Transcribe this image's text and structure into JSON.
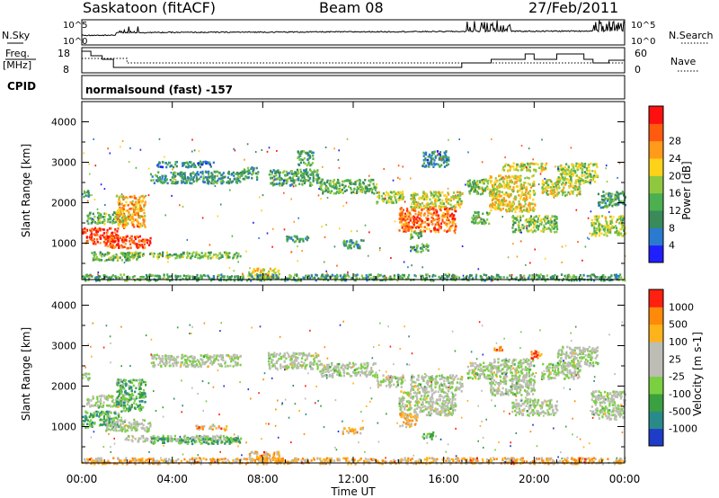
{
  "header": {
    "station": "Saskatoon (fitACF)",
    "beam": "Beam 08",
    "date": "27/Feb/2011"
  },
  "top_panels": {
    "nsky_label": "N.Sky",
    "nsearch_label": "N.Search",
    "noise_tick_top": "10^5",
    "noise_tick_bottom": "10^0",
    "freq_label": "Freq.",
    "freq_unit": "[MHz]",
    "freq_ticks": [
      "18",
      "8"
    ],
    "nave_label": "Nave",
    "nave_ticks": [
      "60",
      "0"
    ],
    "cpid_label": "CPID",
    "cpid_value": "normalsound (fast) -157"
  },
  "chart_data": [
    {
      "type": "heatmap",
      "name": "power-panel",
      "xlabel": "Time UT",
      "ylabel": "Slant Range [km]",
      "xlim": [
        0,
        24
      ],
      "ylim": [
        100,
        4500
      ],
      "x_ticks": [
        "00:00",
        "04:00",
        "08:00",
        "12:00",
        "16:00",
        "20:00",
        "00:00"
      ],
      "y_ticks": [
        1000,
        2000,
        3000,
        4000
      ],
      "colorbar": {
        "label": "Power [dB]",
        "ticks": [
          4,
          8,
          12,
          16,
          20,
          24,
          28
        ],
        "colors": [
          "#1f1fff",
          "#2a7ad0",
          "#3a8a5a",
          "#4caf50",
          "#8fc840",
          "#ffd21a",
          "#ff9a1a",
          "#ff5a10",
          "#ff1010"
        ]
      },
      "regions": [
        {
          "t": [
            0.0,
            0.3
          ],
          "r": [
            2150,
            2350
          ],
          "level": 0.35
        },
        {
          "t": [
            0.0,
            1.6
          ],
          "r": [
            1000,
            1400
          ],
          "level": 0.9
        },
        {
          "t": [
            0.2,
            1.8
          ],
          "r": [
            1500,
            1800
          ],
          "level": 0.4
        },
        {
          "t": [
            1.5,
            2.8
          ],
          "r": [
            1400,
            2200
          ],
          "level": 0.7
        },
        {
          "t": [
            1.0,
            3.0
          ],
          "r": [
            900,
            1200
          ],
          "level": 0.85
        },
        {
          "t": [
            1.8,
            7.0
          ],
          "r": [
            650,
            800
          ],
          "level": 0.45
        },
        {
          "t": [
            0.4,
            2.5
          ],
          "r": [
            600,
            800
          ],
          "level": 0.4
        },
        {
          "t": [
            3.0,
            7.0
          ],
          "r": [
            2500,
            2800
          ],
          "level": 0.3
        },
        {
          "t": [
            3.3,
            5.8
          ],
          "r": [
            2900,
            3050
          ],
          "level": 0.25
        },
        {
          "t": [
            7.0,
            7.8
          ],
          "r": [
            2600,
            2900
          ],
          "level": 0.3
        },
        {
          "t": [
            8.2,
            10.5
          ],
          "r": [
            2450,
            2850
          ],
          "level": 0.35
        },
        {
          "t": [
            9.5,
            10.2
          ],
          "r": [
            2950,
            3300
          ],
          "level": 0.35
        },
        {
          "t": [
            10.5,
            13.0
          ],
          "r": [
            2250,
            2600
          ],
          "level": 0.4
        },
        {
          "t": [
            13.0,
            14.2
          ],
          "r": [
            2000,
            2300
          ],
          "level": 0.5
        },
        {
          "t": [
            14.0,
            16.5
          ],
          "r": [
            1300,
            1900
          ],
          "level": 0.8
        },
        {
          "t": [
            14.5,
            16.8
          ],
          "r": [
            1900,
            2300
          ],
          "level": 0.55
        },
        {
          "t": [
            14.4,
            15.0
          ],
          "r": [
            1100,
            1300
          ],
          "level": 0.4
        },
        {
          "t": [
            15.0,
            16.2
          ],
          "r": [
            2900,
            3300
          ],
          "level": 0.25
        },
        {
          "t": [
            17.0,
            18.2
          ],
          "r": [
            2200,
            2600
          ],
          "level": 0.45
        },
        {
          "t": [
            17.2,
            18.0
          ],
          "r": [
            1500,
            1800
          ],
          "level": 0.4
        },
        {
          "t": [
            18.0,
            20.0
          ],
          "r": [
            1800,
            2700
          ],
          "level": 0.6
        },
        {
          "t": [
            18.5,
            20.5
          ],
          "r": [
            2800,
            3000
          ],
          "level": 0.55
        },
        {
          "t": [
            19.0,
            21.0
          ],
          "r": [
            1300,
            1700
          ],
          "level": 0.45
        },
        {
          "t": [
            20.3,
            22.0
          ],
          "r": [
            2200,
            2600
          ],
          "level": 0.55
        },
        {
          "t": [
            21.0,
            22.8
          ],
          "r": [
            2500,
            3000
          ],
          "level": 0.5
        },
        {
          "t": [
            22.5,
            24.0
          ],
          "r": [
            1200,
            1700
          ],
          "level": 0.5
        },
        {
          "t": [
            22.8,
            24.0
          ],
          "r": [
            1900,
            2300
          ],
          "level": 0.35
        },
        {
          "t": [
            11.5,
            12.5
          ],
          "r": [
            900,
            1100
          ],
          "level": 0.3
        },
        {
          "t": [
            9.0,
            10.0
          ],
          "r": [
            1050,
            1200
          ],
          "level": 0.3
        },
        {
          "t": [
            14.5,
            15.3
          ],
          "r": [
            800,
            1000
          ],
          "level": 0.35
        },
        {
          "t": [
            7.3,
            8.7
          ],
          "r": [
            150,
            400
          ],
          "level": 0.55
        },
        {
          "t": [
            0.0,
            24.0
          ],
          "r": [
            100,
            250
          ],
          "level": 0.35
        }
      ]
    },
    {
      "type": "heatmap",
      "name": "velocity-panel",
      "xlabel": "Time UT",
      "ylabel": "Slant Range [km]",
      "xlim": [
        0,
        24
      ],
      "ylim": [
        100,
        4500
      ],
      "x_ticks": [
        "00:00",
        "04:00",
        "08:00",
        "12:00",
        "16:00",
        "20:00",
        "00:00"
      ],
      "y_ticks": [
        1000,
        2000,
        3000,
        4000
      ],
      "colorbar": {
        "label": "Velocity [m s-1]",
        "ticks": [
          1000,
          500,
          100,
          25,
          -25,
          -100,
          -500,
          -1000
        ],
        "colors": [
          "#1e3cc8",
          "#2a8a8a",
          "#3aa040",
          "#7ad040",
          "#bdbdb5",
          "#bdbdb5",
          "#ffb31a",
          "#ff8a0a",
          "#ff2010"
        ]
      },
      "regions": [
        {
          "t": [
            0.0,
            0.3
          ],
          "r": [
            2150,
            2350
          ],
          "level": 0.5
        },
        {
          "t": [
            0.0,
            1.6
          ],
          "r": [
            1000,
            1400
          ],
          "level": 0.3
        },
        {
          "t": [
            0.2,
            1.8
          ],
          "r": [
            1500,
            1800
          ],
          "level": 0.5
        },
        {
          "t": [
            1.5,
            2.8
          ],
          "r": [
            1400,
            2200
          ],
          "level": 0.3
        },
        {
          "t": [
            1.0,
            3.0
          ],
          "r": [
            900,
            1200
          ],
          "level": 0.5
        },
        {
          "t": [
            1.8,
            7.0
          ],
          "r": [
            650,
            800
          ],
          "level": 0.5
        },
        {
          "t": [
            3.0,
            7.0
          ],
          "r": [
            600,
            750
          ],
          "level": 0.3
        },
        {
          "t": [
            3.0,
            7.0
          ],
          "r": [
            2500,
            2800
          ],
          "level": 0.5
        },
        {
          "t": [
            8.2,
            10.5
          ],
          "r": [
            2450,
            2850
          ],
          "level": 0.5
        },
        {
          "t": [
            10.5,
            13.0
          ],
          "r": [
            2250,
            2600
          ],
          "level": 0.5
        },
        {
          "t": [
            13.0,
            14.2
          ],
          "r": [
            2000,
            2300
          ],
          "level": 0.5
        },
        {
          "t": [
            14.0,
            16.5
          ],
          "r": [
            1300,
            1900
          ],
          "level": 0.5
        },
        {
          "t": [
            14.5,
            16.8
          ],
          "r": [
            1900,
            2300
          ],
          "level": 0.5
        },
        {
          "t": [
            17.0,
            18.2
          ],
          "r": [
            2200,
            2600
          ],
          "level": 0.5
        },
        {
          "t": [
            18.0,
            20.0
          ],
          "r": [
            1800,
            2700
          ],
          "level": 0.5
        },
        {
          "t": [
            19.0,
            21.0
          ],
          "r": [
            1300,
            1700
          ],
          "level": 0.5
        },
        {
          "t": [
            20.3,
            22.0
          ],
          "r": [
            2200,
            2600
          ],
          "level": 0.5
        },
        {
          "t": [
            21.0,
            22.8
          ],
          "r": [
            2500,
            3000
          ],
          "level": 0.5
        },
        {
          "t": [
            22.5,
            24.0
          ],
          "r": [
            1200,
            1900
          ],
          "level": 0.5
        },
        {
          "t": [
            14.0,
            14.8
          ],
          "r": [
            1000,
            1350
          ],
          "level": 0.72
        },
        {
          "t": [
            15.0,
            15.5
          ],
          "r": [
            700,
            900
          ],
          "level": 0.3
        },
        {
          "t": [
            11.5,
            12.4
          ],
          "r": [
            850,
            1000
          ],
          "level": 0.72
        },
        {
          "t": [
            5.0,
            6.5
          ],
          "r": [
            950,
            1050
          ],
          "level": 0.72
        },
        {
          "t": [
            7.3,
            8.7
          ],
          "r": [
            150,
            400
          ],
          "level": 0.72
        },
        {
          "t": [
            0.0,
            24.0
          ],
          "r": [
            100,
            250
          ],
          "level": 0.72
        },
        {
          "t": [
            18.2,
            18.6
          ],
          "r": [
            2900,
            3000
          ],
          "level": 0.85
        },
        {
          "t": [
            19.8,
            20.3
          ],
          "r": [
            2700,
            2900
          ],
          "level": 0.85
        }
      ]
    }
  ]
}
